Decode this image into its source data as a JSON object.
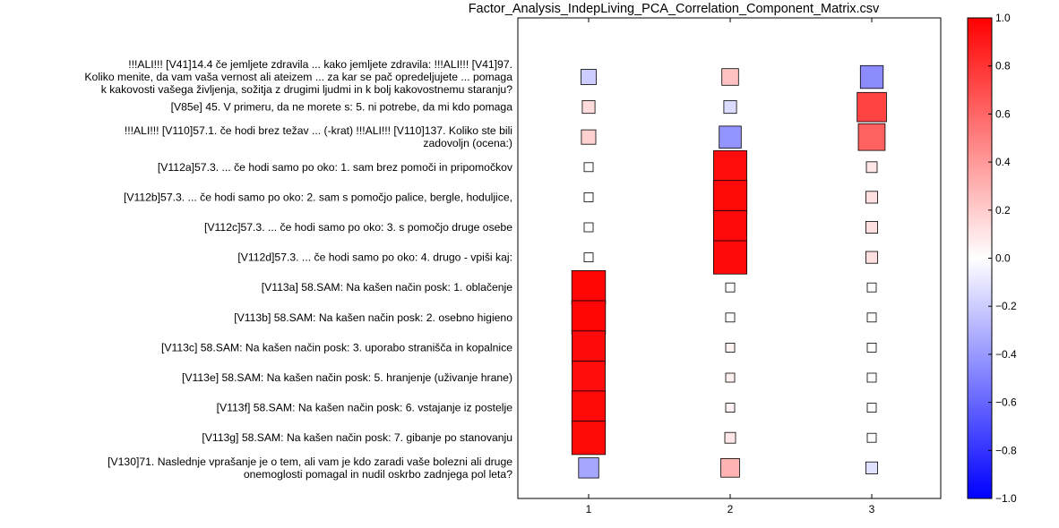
{
  "chart_data": {
    "type": "heatmap",
    "title": "Factor_Analysis_IndepLiving_PCA_Correlation_Component_Matrix.csv",
    "x": [
      "1",
      "2",
      "3"
    ],
    "rows": [
      {
        "label": [
          "!!!ALI!!! [V41]14.4 če jemljete zdravila ... kako jemljete zdravila: !!!ALI!!! [V41]97.",
          "Koliko menite, da vam vaša vernost ali ateizem ... za kar se pač opredeljujete ... pomaga",
          "k kakovosti vašega življenja, sožitja z drugimi ljudmi in k bolj kakovostnemu staranju?"
        ],
        "values": [
          -0.2,
          0.24,
          -0.45
        ]
      },
      {
        "label": [
          "[V85e] 45. V primeru, da ne morete s: 5. ni potrebe, da mi kdo pomaga"
        ],
        "values": [
          0.14,
          -0.14,
          0.74
        ]
      },
      {
        "label": [
          "!!!ALI!!! [V110]57.1. če hodi brez težav ... (-krat) !!!ALI!!! [V110]137. Koliko ste bili",
          "zadovoljn (ocena:)"
        ],
        "values": [
          0.18,
          -0.42,
          0.62
        ]
      },
      {
        "label": [
          "[V112a]57.3. ... če hodi samo po oko: 1. sam brez pomoči in pripomočkov"
        ],
        "values": [
          0.01,
          0.95,
          0.1
        ]
      },
      {
        "label": [
          "[V112b]57.3. ... če hodi samo po oko: 2. sam s pomočjo palice, bergle, hoduljice,"
        ],
        "values": [
          0.01,
          0.97,
          0.12
        ]
      },
      {
        "label": [
          "[V112c]57.3. ... če hodi samo po oko: 3. s pomočjo druge osebe"
        ],
        "values": [
          0.01,
          0.96,
          0.12
        ]
      },
      {
        "label": [
          "[V112d]57.3. ... če hodi samo po oko: 4. drugo - vpiši kaj:"
        ],
        "values": [
          0.01,
          0.96,
          0.12
        ]
      },
      {
        "label": [
          "[V113a] 58.SAM: Na kašen način posk: 1. oblačenje"
        ],
        "values": [
          0.98,
          0.01,
          0.01
        ]
      },
      {
        "label": [
          "[V113b] 58.SAM: Na kašen način posk: 2. osebno higieno"
        ],
        "values": [
          0.98,
          0.01,
          0.01
        ]
      },
      {
        "label": [
          "[V113c] 58.SAM: Na kašen način posk: 3. uporabo stranišča in kopalnice"
        ],
        "values": [
          0.96,
          0.05,
          0.01
        ]
      },
      {
        "label": [
          "[V113e] 58.SAM: Na kašen način posk: 5. hranjenje (uživanje hrane)"
        ],
        "values": [
          0.95,
          0.06,
          0.01
        ]
      },
      {
        "label": [
          "[V113f] 58.SAM: Na kašen način posk: 6. vstajanje iz postelje"
        ],
        "values": [
          0.97,
          0.05,
          0.01
        ]
      },
      {
        "label": [
          "[V113g] 58.SAM: Na kašen način posk: 7. gibanje po stanovanju"
        ],
        "values": [
          0.97,
          0.1,
          0.01
        ]
      },
      {
        "label": [
          "[V130]71. Naslednje vprašanje je o tem, ali vam je kdo zaradi vaše bolezni ali druge",
          "onemoglosti pomagal in nudil oskrbo zadnjega pol leta?"
        ],
        "values": [
          -0.35,
          0.3,
          -0.12
        ]
      }
    ],
    "colorbar": {
      "min": -1,
      "max": 1,
      "ticks": [
        "−1.0",
        "−0.8",
        "−0.6",
        "−0.4",
        "−0.2",
        "0.0",
        "0.2",
        "0.4",
        "0.6",
        "0.8",
        "1.0"
      ]
    },
    "colors": {
      "negative": "#0000ff",
      "zero": "#ffffff",
      "positive": "#ff0000"
    }
  }
}
